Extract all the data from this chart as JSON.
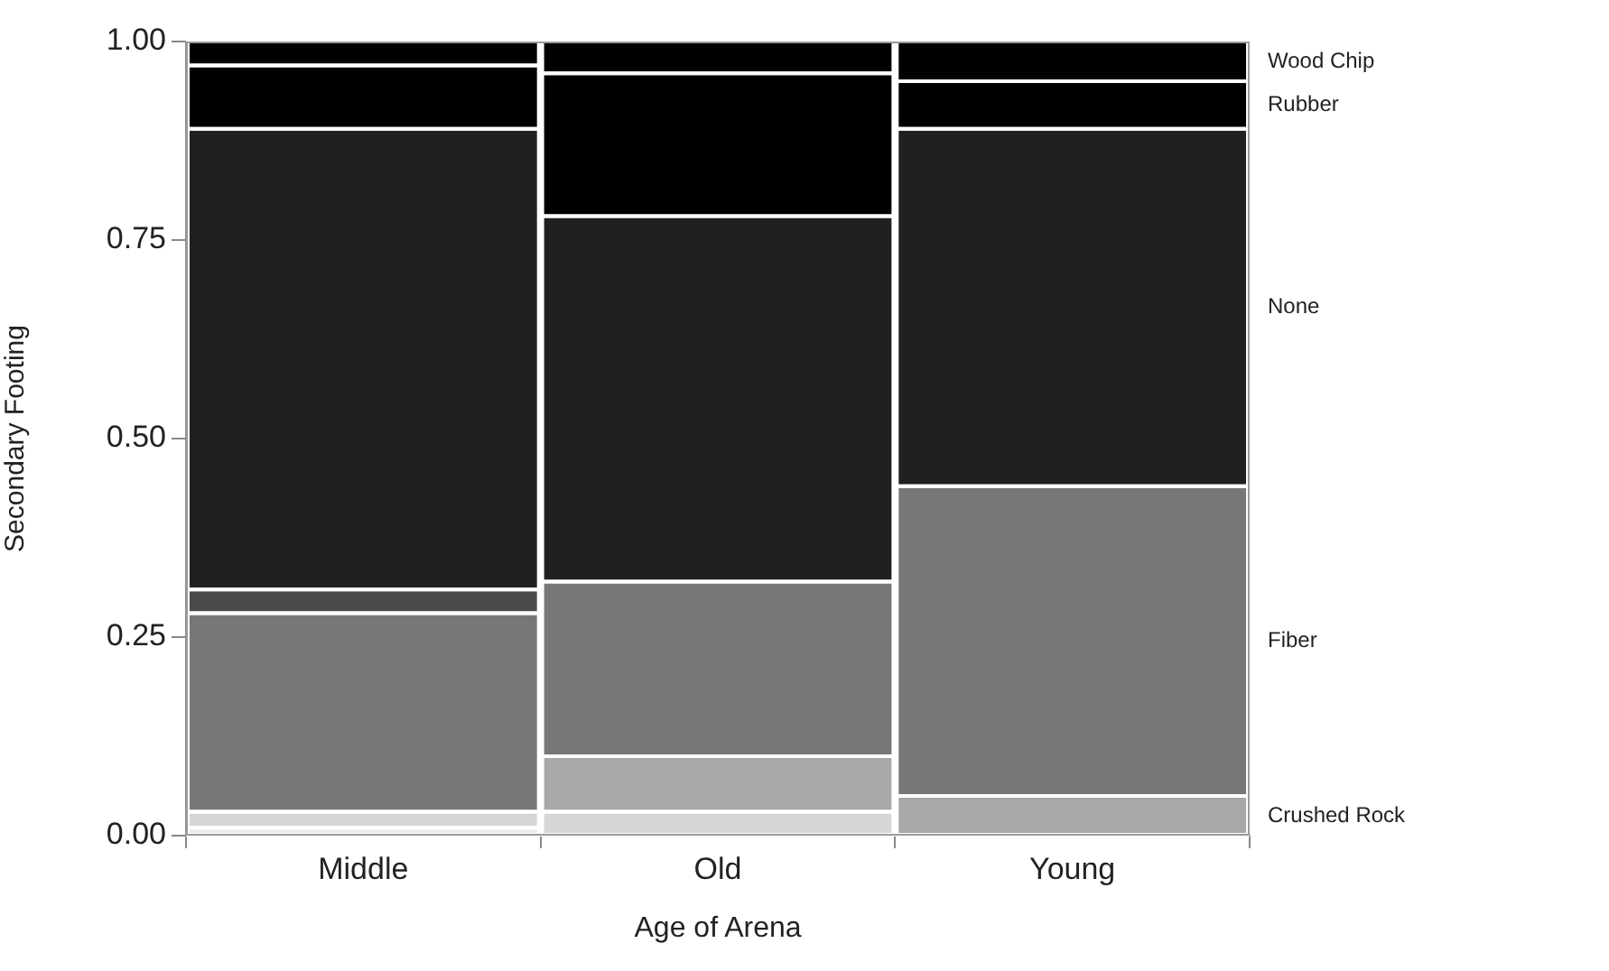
{
  "chart_data": {
    "type": "bar",
    "xlabel": "Age of Arena",
    "ylabel": "Secondary Footing",
    "categories": [
      "Middle",
      "Old",
      "Young"
    ],
    "series": [
      {
        "color": "#eaeaea",
        "values": [
          0.01,
          0,
          0
        ]
      },
      {
        "color": "#d6d6d6",
        "values": [
          0.02,
          0.03,
          0
        ]
      },
      {
        "name": "Crushed Rock",
        "color": "#a8a8a8",
        "values": [
          0,
          0.07,
          0.05
        ]
      },
      {
        "name": "Fiber",
        "color": "#777777",
        "values": [
          0.25,
          0.22,
          0.39
        ]
      },
      {
        "color": "#4a4a4a",
        "values": [
          0.03,
          0,
          0
        ]
      },
      {
        "name": "None",
        "color": "#202020",
        "values": [
          0.58,
          0.46,
          0.45
        ]
      },
      {
        "name": "Rubber",
        "color": "#000000",
        "values": [
          0.08,
          0.18,
          0.06
        ]
      },
      {
        "name": "Wood Chip",
        "color": "#000000",
        "values": [
          0.03,
          0.04,
          0.05
        ]
      }
    ],
    "stacked": true,
    "ylim": [
      0,
      1
    ],
    "yticks": [
      {
        "value": 0,
        "label": "0.00"
      },
      {
        "value": 0.25,
        "label": "0.25"
      },
      {
        "value": 0.5,
        "label": "0.50"
      },
      {
        "value": 0.75,
        "label": "0.75"
      },
      {
        "value": 1,
        "label": "1.00"
      }
    ]
  }
}
